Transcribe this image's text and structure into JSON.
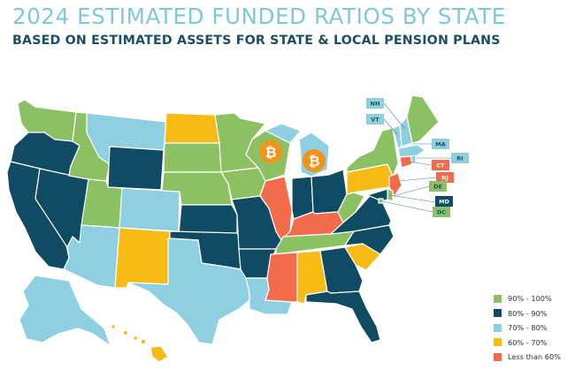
{
  "header": {
    "title": "2024 ESTIMATED FUNDED RATIOS BY STATE",
    "subtitle": "BASED ON ESTIMATED ASSETS FOR STATE & LOCAL PENSION PLANS"
  },
  "colors": {
    "title": "#7fc8d6",
    "subtitle": "#1b4f63",
    "band_90_100": "#8cc163",
    "band_80_90": "#0f4c63",
    "band_70_80": "#8ecfe2",
    "band_60_70": "#f8bb16",
    "band_lt60": "#f26b4b",
    "bitcoin": "#f2931a"
  },
  "legend": [
    {
      "key": "band_90_100",
      "label": "90% - 100%"
    },
    {
      "key": "band_80_90",
      "label": "80% - 90%"
    },
    {
      "key": "band_70_80",
      "label": "70% - 80%"
    },
    {
      "key": "band_60_70",
      "label": "60% - 70%"
    },
    {
      "key": "band_lt60",
      "label": "Less than 60%"
    }
  ],
  "callouts": {
    "NH": "NH",
    "VT": "VT",
    "MA": "MA",
    "RI": "RI",
    "CT": "CT",
    "NJ": "NJ",
    "DE": "DE",
    "MD": "MD",
    "DC": "DC"
  },
  "states": {
    "WA": "band_90_100",
    "OR": "band_80_90",
    "CA": "band_80_90",
    "NV": "band_80_90",
    "ID": "band_90_100",
    "MT": "band_70_80",
    "WY": "band_80_90",
    "UT": "band_90_100",
    "CO": "band_70_80",
    "AZ": "band_70_80",
    "NM": "band_60_70",
    "ND": "band_60_70",
    "SD": "band_90_100",
    "NE": "band_90_100",
    "KS": "band_80_90",
    "OK": "band_80_90",
    "TX": "band_70_80",
    "MN": "band_90_100",
    "IA": "band_90_100",
    "MO": "band_80_90",
    "AR": "band_80_90",
    "LA": "band_70_80",
    "WI": "band_90_100",
    "IL": "band_lt60",
    "MI": "band_70_80",
    "IN": "band_80_90",
    "OH": "band_80_90",
    "KY": "band_lt60",
    "TN": "band_90_100",
    "MS": "band_lt60",
    "AL": "band_60_70",
    "GA": "band_80_90",
    "FL": "band_80_90",
    "SC": "band_60_70",
    "NC": "band_80_90",
    "VA": "band_80_90",
    "WV": "band_90_100",
    "PA": "band_60_70",
    "NY": "band_90_100",
    "ME": "band_90_100",
    "VT": "band_70_80",
    "NH": "band_70_80",
    "MA": "band_70_80",
    "RI": "band_70_80",
    "CT": "band_lt60",
    "NJ": "band_lt60",
    "DE": "band_90_100",
    "MD": "band_80_90",
    "DC": "band_90_100",
    "AK": "band_70_80",
    "HI": "band_60_70"
  },
  "markers": [
    {
      "name": "wisconsin-bitcoin",
      "symbol": "₿"
    },
    {
      "name": "michigan-bitcoin",
      "symbol": "₿"
    }
  ]
}
